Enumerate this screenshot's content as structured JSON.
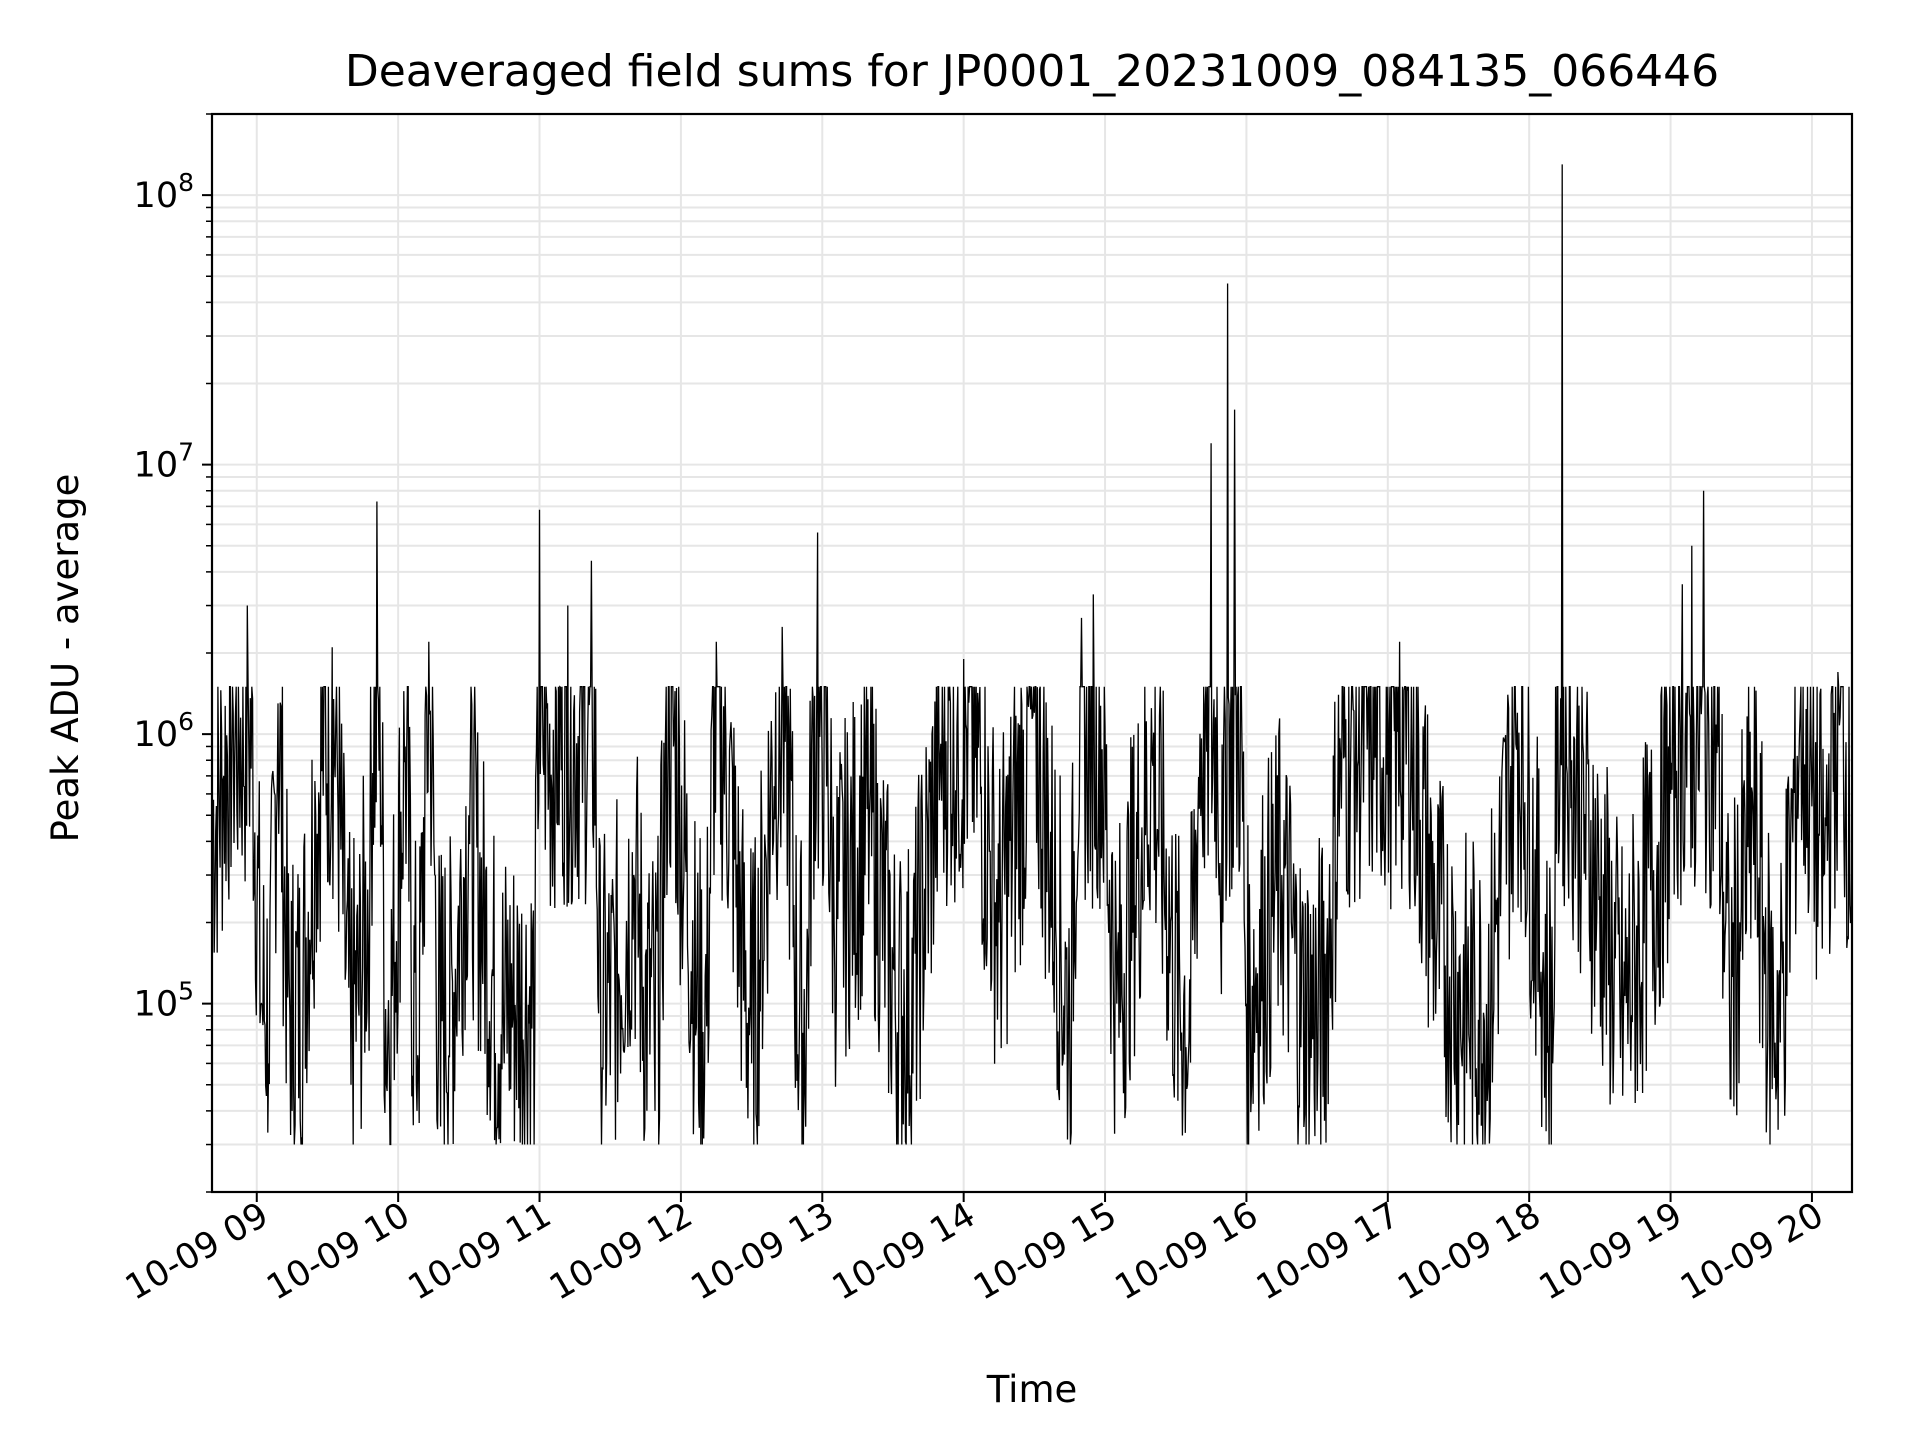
{
  "chart_data": {
    "type": "line",
    "title": "Deaveraged field sums for JP0001_20231009_084135_066446",
    "xlabel": "Time",
    "ylabel": "Peak ADU - average",
    "yscale": "log",
    "ylim": [
      20000,
      200000000
    ],
    "xlim": [
      "2023-10-09 08:41",
      "2023-10-09 20:17"
    ],
    "grid": true,
    "line_color": "#000000",
    "grid_color": "#e6e6e6",
    "x_ticks": [
      {
        "at": "2023-10-09 09:00",
        "label": "10-09 09"
      },
      {
        "at": "2023-10-09 10:00",
        "label": "10-09 10"
      },
      {
        "at": "2023-10-09 11:00",
        "label": "10-09 11"
      },
      {
        "at": "2023-10-09 12:00",
        "label": "10-09 12"
      },
      {
        "at": "2023-10-09 13:00",
        "label": "10-09 13"
      },
      {
        "at": "2023-10-09 14:00",
        "label": "10-09 14"
      },
      {
        "at": "2023-10-09 15:00",
        "label": "10-09 15"
      },
      {
        "at": "2023-10-09 16:00",
        "label": "10-09 16"
      },
      {
        "at": "2023-10-09 17:00",
        "label": "10-09 17"
      },
      {
        "at": "2023-10-09 18:00",
        "label": "10-09 18"
      },
      {
        "at": "2023-10-09 19:00",
        "label": "10-09 19"
      },
      {
        "at": "2023-10-09 20:00",
        "label": "10-09 20"
      }
    ],
    "y_ticks": [
      {
        "value": 100000,
        "base": "10",
        "exp": "5"
      },
      {
        "value": 1000000,
        "base": "10",
        "exp": "6"
      },
      {
        "value": 10000000,
        "base": "10",
        "exp": "7"
      },
      {
        "value": 100000000,
        "base": "10",
        "exp": "8"
      }
    ],
    "series": [
      {
        "points": [
          [
            "2023-10-09 08:41",
            450000
          ],
          [
            "2023-10-09 08:46",
            700000
          ],
          [
            "2023-10-09 08:50",
            1200000
          ],
          [
            "2023-10-09 08:56",
            3000000
          ],
          [
            "2023-10-09 09:02",
            100000
          ],
          [
            "2023-10-09 09:05",
            60000
          ],
          [
            "2023-10-09 09:09",
            1300000
          ],
          [
            "2023-10-09 09:15",
            40000
          ],
          [
            "2023-10-09 09:25",
            500000
          ],
          [
            "2023-10-09 09:32",
            2100000
          ],
          [
            "2023-10-09 09:40",
            50000
          ],
          [
            "2023-10-09 09:48",
            300000
          ],
          [
            "2023-10-09 09:51",
            7300000
          ],
          [
            "2023-10-09 09:55",
            50000
          ],
          [
            "2023-10-09 10:03",
            900000
          ],
          [
            "2023-10-09 10:08",
            40000
          ],
          [
            "2023-10-09 10:13",
            2200000
          ],
          [
            "2023-10-09 10:18",
            35000
          ],
          [
            "2023-10-09 10:30",
            500000
          ],
          [
            "2023-10-09 10:45",
            60000
          ],
          [
            "2023-10-09 10:58",
            80000
          ],
          [
            "2023-10-09 11:00",
            6800000
          ],
          [
            "2023-10-09 11:04",
            700000
          ],
          [
            "2023-10-09 11:12",
            3000000
          ],
          [
            "2023-10-09 11:22",
            4400000
          ],
          [
            "2023-10-09 11:26",
            60000
          ],
          [
            "2023-10-09 11:40",
            300000
          ],
          [
            "2023-10-09 11:49",
            40000
          ],
          [
            "2023-10-09 11:55",
            1500000
          ],
          [
            "2023-10-09 12:10",
            50000
          ],
          [
            "2023-10-09 12:15",
            2200000
          ],
          [
            "2023-10-09 12:30",
            60000
          ],
          [
            "2023-10-09 12:43",
            2500000
          ],
          [
            "2023-10-09 12:52",
            30000
          ],
          [
            "2023-10-09 12:58",
            5600000
          ],
          [
            "2023-10-09 13:05",
            200000
          ],
          [
            "2023-10-09 13:20",
            500000
          ],
          [
            "2023-10-09 13:35",
            60000
          ],
          [
            "2023-10-09 13:50",
            800000
          ],
          [
            "2023-10-09 14:00",
            1900000
          ],
          [
            "2023-10-09 14:15",
            200000
          ],
          [
            "2023-10-09 14:30",
            1200000
          ],
          [
            "2023-10-09 14:45",
            80000
          ],
          [
            "2023-10-09 14:50",
            2700000
          ],
          [
            "2023-10-09 14:55",
            3300000
          ],
          [
            "2023-10-09 15:05",
            100000
          ],
          [
            "2023-10-09 15:20",
            800000
          ],
          [
            "2023-10-09 15:35",
            50000
          ],
          [
            "2023-10-09 15:45",
            12000000
          ],
          [
            "2023-10-09 15:50",
            200000
          ],
          [
            "2023-10-09 15:52",
            47000000
          ],
          [
            "2023-10-09 15:55",
            16000000
          ],
          [
            "2023-10-09 16:00",
            100000
          ],
          [
            "2023-10-09 16:15",
            300000
          ],
          [
            "2023-10-09 16:30",
            40000
          ],
          [
            "2023-10-09 16:40",
            800000
          ],
          [
            "2023-10-09 17:05",
            2200000
          ],
          [
            "2023-10-09 17:20",
            200000
          ],
          [
            "2023-10-09 17:40",
            60000
          ],
          [
            "2023-10-09 17:55",
            1200000
          ],
          [
            "2023-10-09 18:10",
            60000
          ],
          [
            "2023-10-09 18:14",
            130000000
          ],
          [
            "2023-10-09 18:18",
            800000
          ],
          [
            "2023-10-09 18:40",
            90000
          ],
          [
            "2023-10-09 19:00",
            600000
          ],
          [
            "2023-10-09 19:05",
            3600000
          ],
          [
            "2023-10-09 19:09",
            5000000
          ],
          [
            "2023-10-09 19:14",
            8000000
          ],
          [
            "2023-10-09 19:25",
            100000
          ],
          [
            "2023-10-09 19:35",
            500000
          ],
          [
            "2023-10-09 19:45",
            50000
          ],
          [
            "2023-10-09 19:55",
            1200000
          ],
          [
            "2023-10-09 20:05",
            300000
          ],
          [
            "2023-10-09 20:11",
            1700000
          ],
          [
            "2023-10-09 20:17",
            400000
          ]
        ]
      }
    ]
  }
}
